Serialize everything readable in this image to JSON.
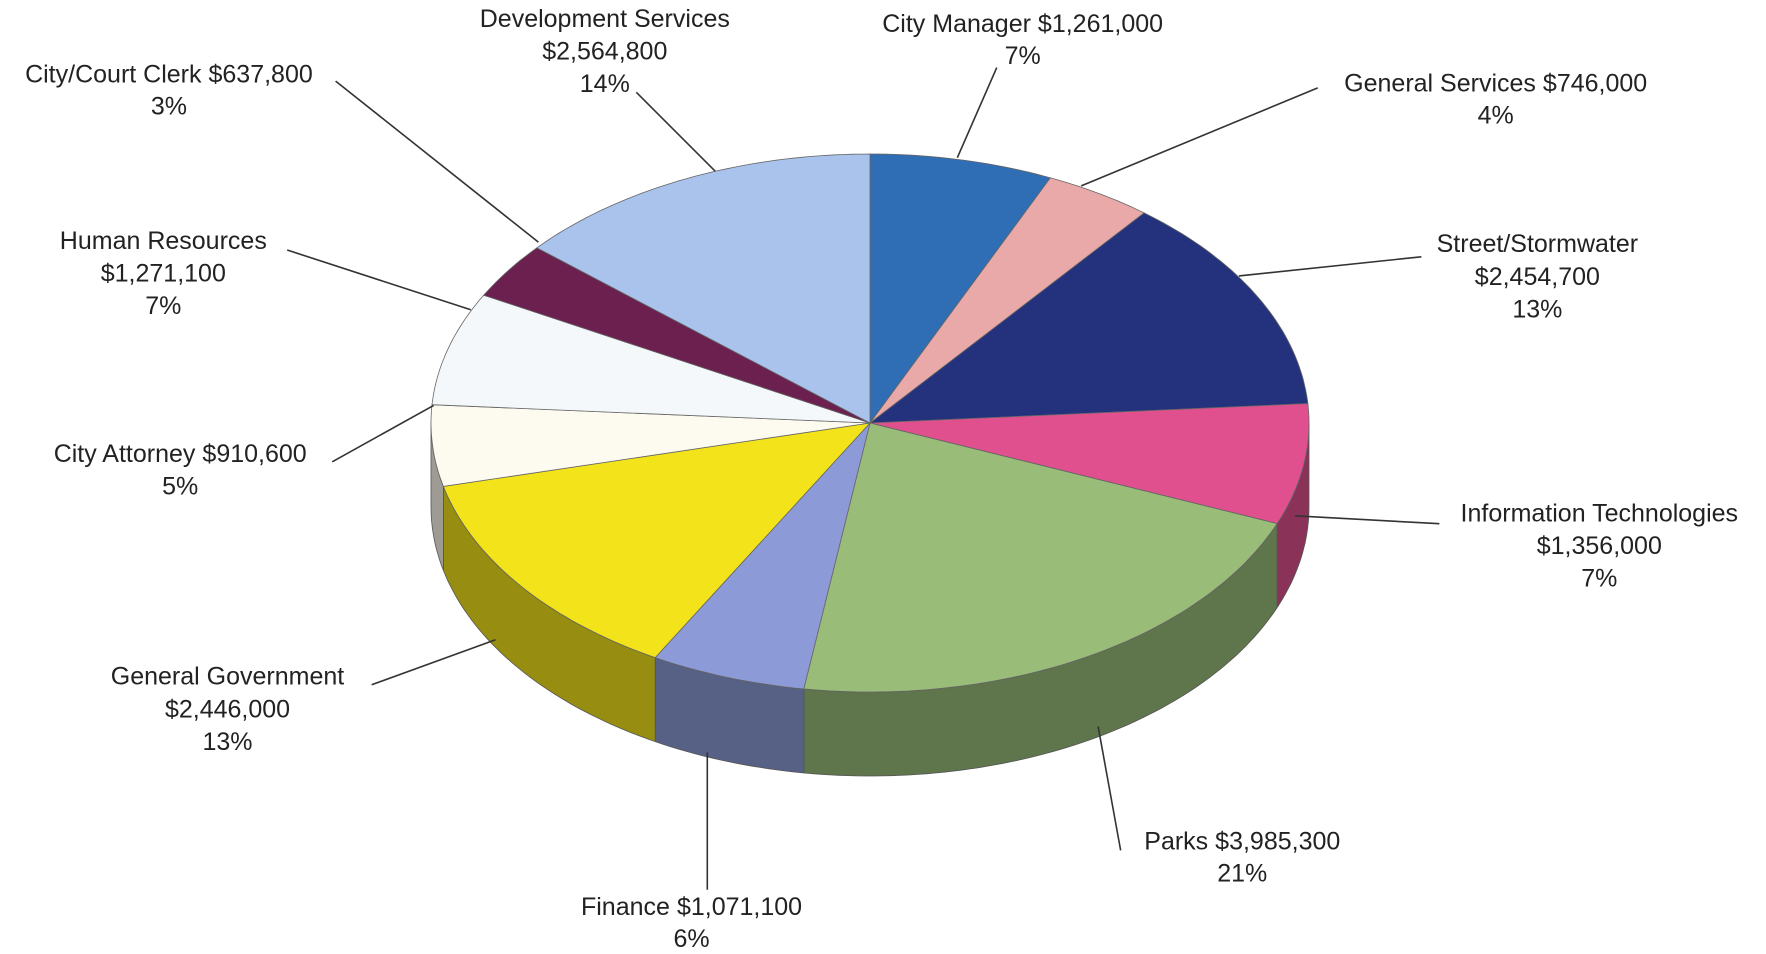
{
  "chart_data": {
    "type": "pie",
    "categories": [
      "City Manager",
      "General Services",
      "Street/Stormwater",
      "Information Technologies",
      "Parks",
      "Finance",
      "General Government",
      "City Attorney",
      "Human Resources",
      "City/Court Clerk",
      "Development Services"
    ],
    "values": [
      1261000,
      746000,
      2454700,
      1356000,
      3985300,
      1071100,
      2446000,
      910600,
      1271100,
      637800,
      2564800
    ],
    "value_labels": [
      "$1,261,000",
      "$746,000",
      "$2,454,700",
      "$1,356,000",
      "$3,985,300",
      "$1,071,100",
      "$2,446,000",
      "$910,600",
      "$1,271,100",
      "$637,800",
      "$2,564,800"
    ],
    "percents": [
      7,
      4,
      13,
      7,
      21,
      6,
      13,
      5,
      7,
      3,
      14
    ],
    "percent_labels": [
      "7%",
      "4%",
      "13%",
      "7%",
      "21%",
      "6%",
      "13%",
      "5%",
      "7%",
      "3%",
      "14%"
    ],
    "colors": [
      "#2f6db5",
      "#e9a9a9",
      "#24327d",
      "#e0508f",
      "#99bc79",
      "#8c9bd7",
      "#f2e31b",
      "#fdfaef",
      "#f4f8fa",
      "#6c2050",
      "#a9c3ec"
    ]
  }
}
